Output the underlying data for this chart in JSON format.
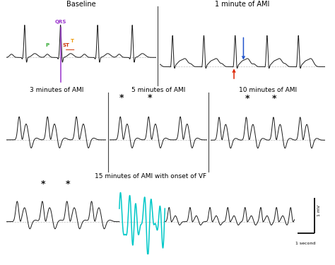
{
  "title_row1_left": "Baseline",
  "title_row1_right": "1 minute of AMI",
  "title_row2_left": "3 minutes of AMI",
  "title_row2_mid": "5 minutes of AMI",
  "title_row2_right": "10 minutes of AMI",
  "title_row3": "15 minutes of AMI with onset of VF",
  "bg_color": "#ffffff",
  "ecg_color": "#1a1a1a",
  "cyan_color": "#00c8c8",
  "dashed_color": "#bbbbbb",
  "scale_color": "#1a1a1a",
  "label_P_color": "#33aa33",
  "label_QRS_color": "#9933cc",
  "label_ST_color": "#cc3300",
  "label_T_color": "#ee9900",
  "arrow_red": "#dd2200",
  "arrow_blue": "#2255cc",
  "star_color": "#111111",
  "divider_color": "#444444"
}
